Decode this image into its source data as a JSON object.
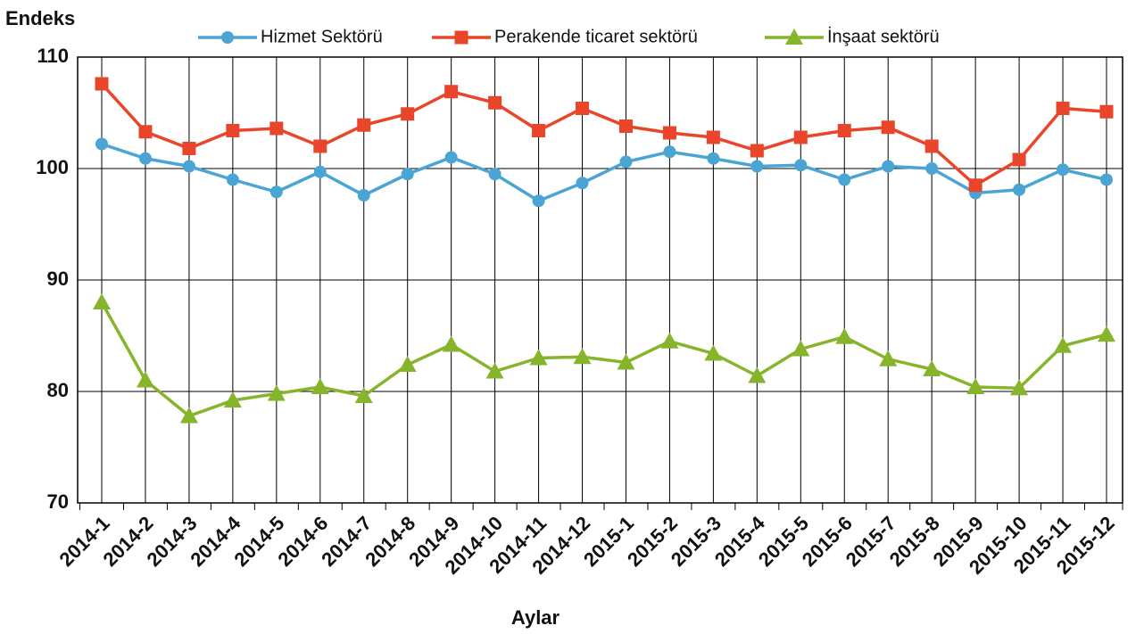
{
  "chart_data": {
    "type": "line",
    "y_label": "Endeks",
    "x_label": "Aylar",
    "categories": [
      "2014-1",
      "2014-2",
      "2014-3",
      "2014-4",
      "2014-5",
      "2014-6",
      "2014-7",
      "2014-8",
      "2014-9",
      "2014-10",
      "2014-11",
      "2014-12",
      "2015-1",
      "2015-2",
      "2015-3",
      "2015-4",
      "2015-5",
      "2015-6",
      "2015-7",
      "2015-8",
      "2015-9",
      "2015-10",
      "2015-11",
      "2015-12"
    ],
    "series": [
      {
        "name": "Hizmet Sektörü",
        "color": "#4aa5d4",
        "marker": "circle",
        "values": [
          102.2,
          100.9,
          100.2,
          99.0,
          97.9,
          99.7,
          97.6,
          99.5,
          101.0,
          99.5,
          97.1,
          98.7,
          100.6,
          101.5,
          100.9,
          100.2,
          100.3,
          99.0,
          100.2,
          100.0,
          97.8,
          98.1,
          99.9,
          99.0
        ]
      },
      {
        "name": "Perakende ticaret sektörü",
        "color": "#e8452a",
        "marker": "square",
        "values": [
          107.6,
          103.3,
          101.8,
          103.4,
          103.6,
          102.0,
          103.9,
          104.9,
          106.9,
          105.9,
          103.4,
          105.4,
          103.8,
          103.2,
          102.8,
          101.6,
          102.8,
          103.4,
          103.7,
          102.0,
          98.5,
          100.8,
          105.4,
          105.1
        ]
      },
      {
        "name": "İnşaat sektörü",
        "color": "#86b52c",
        "marker": "triangle",
        "values": [
          88.0,
          81.0,
          77.8,
          79.2,
          79.8,
          80.4,
          79.6,
          82.4,
          84.2,
          81.8,
          83.0,
          83.1,
          82.6,
          84.5,
          83.4,
          81.4,
          83.8,
          84.9,
          82.9,
          82.0,
          80.4,
          80.3,
          84.1,
          85.1
        ]
      }
    ],
    "ylim": [
      70,
      110
    ],
    "yticks": [
      70,
      80,
      90,
      100,
      110
    ],
    "grid": true
  }
}
